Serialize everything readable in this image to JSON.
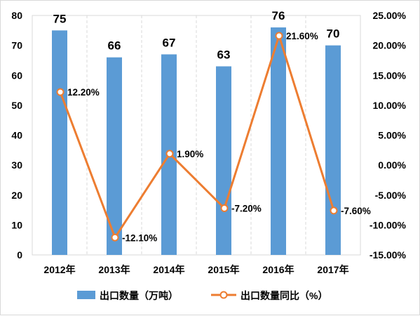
{
  "chart_data": {
    "type": "bar",
    "categories": [
      "2012年",
      "2013年",
      "2014年",
      "2015年",
      "2016年",
      "2017年"
    ],
    "series": [
      {
        "name": "出口数量（万吨）",
        "type": "bar",
        "axis": "left",
        "values": [
          75,
          66,
          67,
          63,
          76,
          70
        ],
        "value_labels": [
          "75",
          "66",
          "67",
          "63",
          "76",
          "70"
        ],
        "color": "#5b9bd5"
      },
      {
        "name": "出口数量同比（%）",
        "type": "line",
        "axis": "right",
        "values": [
          12.2,
          -12.1,
          1.9,
          -7.2,
          21.6,
          -7.6
        ],
        "value_labels": [
          "12.20%",
          "-12.10%",
          "1.90%",
          "-7.20%",
          "21.60%",
          "-7.60%"
        ],
        "color": "#ed7d31"
      }
    ],
    "y_left": {
      "ylim": [
        0,
        80
      ],
      "ticks": [
        0,
        10,
        20,
        30,
        40,
        50,
        60,
        70,
        80
      ],
      "tick_labels": [
        "0",
        "10",
        "20",
        "30",
        "40",
        "50",
        "60",
        "70",
        "80"
      ]
    },
    "y_right": {
      "ylim": [
        -15,
        25
      ],
      "ticks": [
        -15,
        -10,
        -5,
        0,
        5,
        10,
        15,
        20,
        25
      ],
      "tick_labels": [
        "-15.00%",
        "-10.00%",
        "-5.00%",
        "0.00%",
        "5.00%",
        "10.00%",
        "15.00%",
        "20.00%",
        "25.00%"
      ]
    },
    "grid": "vertical dashed",
    "legend_position": "bottom"
  }
}
